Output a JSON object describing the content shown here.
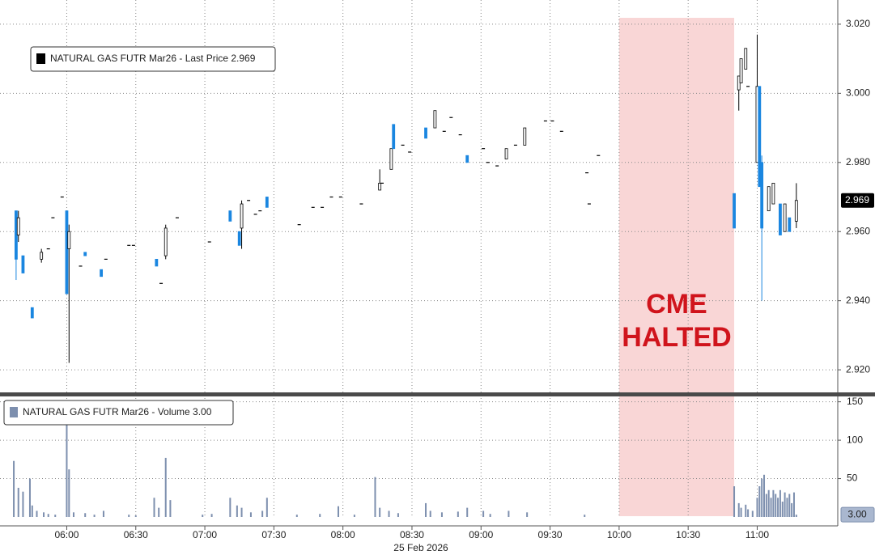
{
  "chart_data": [
    {
      "type": "candlestick",
      "legend": "NATURAL GAS FUTR Mar26 - Last Price 2.969",
      "x": [
        "05:38",
        "05:39",
        "05:41",
        "05:45",
        "05:49",
        "05:52",
        "05:54",
        "05:58",
        "06:00",
        "06:01",
        "06:06",
        "06:08",
        "06:15",
        "06:17",
        "06:27",
        "06:29",
        "06:39",
        "06:41",
        "06:43",
        "06:48",
        "07:02",
        "07:11",
        "07:15",
        "07:16",
        "07:19",
        "07:22",
        "07:24",
        "07:27",
        "07:41",
        "07:47",
        "07:51",
        "07:55",
        "07:59",
        "08:08",
        "08:16",
        "08:17",
        "08:21",
        "08:22",
        "08:26",
        "08:29",
        "08:36",
        "08:40",
        "08:44",
        "08:47",
        "08:51",
        "08:54",
        "09:01",
        "09:03",
        "09:07",
        "09:11",
        "09:15",
        "09:19",
        "09:28",
        "09:31",
        "09:35",
        "09:46",
        "09:47",
        "09:51",
        "10:50",
        "10:52",
        "10:53",
        "10:55",
        "10:56",
        "11:00",
        "11:01",
        "11:02",
        "11:05",
        "11:07",
        "11:10",
        "11:12",
        "11:14",
        "11:17"
      ],
      "open": [
        2.966,
        2.959,
        2.953,
        2.938,
        2.952,
        2.955,
        2.964,
        2.97,
        2.966,
        2.955,
        2.95,
        2.954,
        2.949,
        2.952,
        2.956,
        2.956,
        2.952,
        2.945,
        2.953,
        2.964,
        2.957,
        2.966,
        2.96,
        2.961,
        2.969,
        2.965,
        2.966,
        2.97,
        2.962,
        2.967,
        2.967,
        2.97,
        2.97,
        2.968,
        2.972,
        2.974,
        2.978,
        2.991,
        2.985,
        2.983,
        2.99,
        2.99,
        2.989,
        2.993,
        2.988,
        2.982,
        2.984,
        2.98,
        2.979,
        2.981,
        2.985,
        2.985,
        2.992,
        2.992,
        2.989,
        2.977,
        2.968,
        2.982,
        2.971,
        3.001,
        3.003,
        3.007,
        3.002,
        2.98,
        3.002,
        2.98,
        2.966,
        2.968,
        2.968,
        2.96,
        2.964,
        2.963
      ],
      "high": [
        2.966,
        2.966,
        2.953,
        2.938,
        2.955,
        2.955,
        2.964,
        2.97,
        2.966,
        2.962,
        2.95,
        2.954,
        2.949,
        2.952,
        2.956,
        2.956,
        2.952,
        2.945,
        2.962,
        2.964,
        2.957,
        2.966,
        2.96,
        2.969,
        2.969,
        2.965,
        2.966,
        2.97,
        2.962,
        2.967,
        2.967,
        2.97,
        2.97,
        2.968,
        2.978,
        2.974,
        2.984,
        2.991,
        2.985,
        2.983,
        2.99,
        2.995,
        2.989,
        2.993,
        2.988,
        2.982,
        2.984,
        2.98,
        2.979,
        2.984,
        2.985,
        2.99,
        2.992,
        2.992,
        2.989,
        2.977,
        2.968,
        2.982,
        2.971,
        3.005,
        3.01,
        3.013,
        3.002,
        3.017,
        3.002,
        2.982,
        2.973,
        2.974,
        2.968,
        2.968,
        2.964,
        2.974
      ],
      "low": [
        2.946,
        2.957,
        2.948,
        2.935,
        2.951,
        2.955,
        2.964,
        2.97,
        2.942,
        2.922,
        2.95,
        2.953,
        2.947,
        2.952,
        2.956,
        2.956,
        2.95,
        2.945,
        2.952,
        2.964,
        2.957,
        2.963,
        2.956,
        2.955,
        2.969,
        2.965,
        2.966,
        2.967,
        2.962,
        2.967,
        2.967,
        2.97,
        2.97,
        2.968,
        2.972,
        2.974,
        2.978,
        2.984,
        2.985,
        2.983,
        2.987,
        2.99,
        2.989,
        2.993,
        2.988,
        2.98,
        2.984,
        2.98,
        2.979,
        2.981,
        2.985,
        2.985,
        2.992,
        2.992,
        2.989,
        2.977,
        2.968,
        2.982,
        2.961,
        2.995,
        3.003,
        3.007,
        3.002,
        2.98,
        2.973,
        2.94,
        2.966,
        2.968,
        2.959,
        2.96,
        2.96,
        2.961
      ],
      "close": [
        2.952,
        2.964,
        2.948,
        2.935,
        2.954,
        2.955,
        2.964,
        2.97,
        2.942,
        2.96,
        2.95,
        2.953,
        2.947,
        2.952,
        2.956,
        2.956,
        2.95,
        2.945,
        2.961,
        2.964,
        2.957,
        2.963,
        2.956,
        2.968,
        2.969,
        2.965,
        2.966,
        2.967,
        2.962,
        2.967,
        2.967,
        2.97,
        2.97,
        2.968,
        2.974,
        2.974,
        2.984,
        2.984,
        2.985,
        2.983,
        2.987,
        2.995,
        2.989,
        2.993,
        2.988,
        2.98,
        2.984,
        2.98,
        2.979,
        2.984,
        2.985,
        2.99,
        2.992,
        2.992,
        2.989,
        2.977,
        2.968,
        2.982,
        2.961,
        3.005,
        3.01,
        3.013,
        3.002,
        3.002,
        2.973,
        2.961,
        2.973,
        2.974,
        2.959,
        2.968,
        2.96,
        2.969
      ],
      "up_color": "#000000",
      "down_color": "#1a86e0",
      "last_value_label": "2.969",
      "xlim": [
        "05:31",
        "11:35"
      ],
      "ylim": [
        2.913,
        3.027
      ],
      "yticks": [
        {
          "value": 2.92,
          "label": "2.920"
        },
        {
          "value": 2.94,
          "label": "2.940"
        },
        {
          "value": 2.96,
          "label": "2.960"
        },
        {
          "value": 2.98,
          "label": "2.980"
        },
        {
          "value": 3.0,
          "label": "3.000"
        },
        {
          "value": 3.02,
          "label": "3.020"
        }
      ],
      "grid": true,
      "shaded_region": {
        "x": [
          "10:00",
          "10:50"
        ],
        "color": "#f9d6d6",
        "label": [
          "CME",
          "HALTED"
        ],
        "label_color": "#d0141c"
      }
    },
    {
      "type": "bar",
      "legend": "NATURAL GAS FUTR Mar26 - Volume 3.00",
      "x": [
        "05:37",
        "05:39",
        "05:41",
        "05:44",
        "05:45",
        "05:47",
        "05:50",
        "05:52",
        "05:55",
        "06:00",
        "06:01",
        "06:03",
        "06:08",
        "06:12",
        "06:16",
        "06:27",
        "06:30",
        "06:38",
        "06:40",
        "06:43",
        "06:45",
        "06:59",
        "07:03",
        "07:11",
        "07:14",
        "07:16",
        "07:20",
        "07:25",
        "07:27",
        "07:40",
        "07:50",
        "07:58",
        "08:05",
        "08:14",
        "08:16",
        "08:20",
        "08:24",
        "08:36",
        "08:38",
        "08:43",
        "08:50",
        "08:54",
        "09:01",
        "09:04",
        "09:12",
        "09:20",
        "09:45",
        "10:50",
        "10:52",
        "10:53",
        "10:55",
        "10:56",
        "10:58",
        "11:00",
        "11:01",
        "11:02",
        "11:03",
        "11:04",
        "11:05",
        "11:06",
        "11:07",
        "11:08",
        "11:09",
        "11:10",
        "11:11",
        "11:12",
        "11:13",
        "11:14",
        "11:15",
        "11:16",
        "11:17"
      ],
      "values": [
        73,
        38,
        33,
        50,
        15,
        8,
        6,
        4,
        3,
        120,
        62,
        6,
        5,
        3,
        8,
        3,
        2,
        25,
        12,
        77,
        22,
        3,
        4,
        25,
        15,
        12,
        6,
        8,
        25,
        3,
        4,
        14,
        3,
        52,
        12,
        8,
        5,
        18,
        8,
        6,
        7,
        12,
        8,
        4,
        8,
        6,
        3,
        40,
        18,
        12,
        16,
        10,
        8,
        25,
        40,
        50,
        55,
        30,
        35,
        25,
        35,
        30,
        25,
        35,
        20,
        32,
        25,
        30,
        18,
        32,
        3
      ],
      "color": "#7d8fae",
      "last_value_label": "3.00",
      "xlim": [
        "05:31",
        "11:35"
      ],
      "ylim": [
        0,
        157
      ],
      "yticks": [
        50,
        100,
        150
      ],
      "xticks": [
        "06:00",
        "06:30",
        "07:00",
        "07:30",
        "08:00",
        "08:30",
        "09:00",
        "09:30",
        "10:00",
        "10:30",
        "11:00"
      ],
      "xlabel": "25 Feb 2026",
      "grid": true
    }
  ]
}
